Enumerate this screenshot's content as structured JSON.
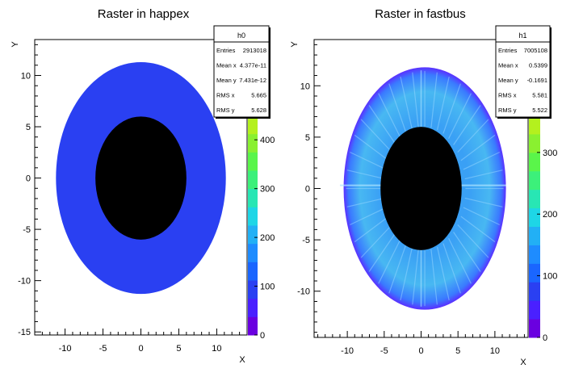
{
  "chart_data": [
    {
      "type": "heatmap",
      "title": "Raster in happex",
      "xlabel": "X",
      "ylabel": "Y",
      "xlim": [
        -14,
        14
      ],
      "ylim": [
        -15.3,
        13.5
      ],
      "x_ticks": [
        -10,
        -5,
        0,
        5,
        10
      ],
      "y_ticks": [
        -15,
        -10,
        -5,
        0,
        5,
        10
      ],
      "outer_ellipse": {
        "cx": 0,
        "cy": 0,
        "rx": 11.2,
        "ry": 11.3
      },
      "inner_ellipse": {
        "cx": 0,
        "cy": 0,
        "rx": 6.0,
        "ry": 6.0
      },
      "fill_color": "#2a40f2",
      "hole_color": "#000000",
      "colorbar": {
        "max": 450,
        "ticks": [
          0,
          100,
          200,
          300,
          400
        ],
        "tick_labels": [
          "0",
          "100",
          "200",
          "300",
          "400"
        ],
        "top_label": "0"
      },
      "stats": {
        "name": "h0",
        "rows": [
          {
            "label": "Entries",
            "value": "2913018"
          },
          {
            "label": "Mean x",
            "value": "4.377e-11"
          },
          {
            "label": "Mean y",
            "value": "7.431e-12"
          },
          {
            "label": "RMS x",
            "value": "5.665"
          },
          {
            "label": "RMS y",
            "value": "5.628"
          }
        ]
      }
    },
    {
      "type": "heatmap",
      "title": "Raster in fastbus",
      "xlabel": "X",
      "ylabel": "Y",
      "xlim": [
        -14.5,
        14.5
      ],
      "ylim": [
        -14.5,
        14.5
      ],
      "x_ticks": [
        -10,
        -5,
        0,
        5,
        10
      ],
      "y_ticks": [
        -10,
        -5,
        0,
        5,
        10
      ],
      "outer_ellipse": {
        "cx": 0.5,
        "cy": 0,
        "rx": 11,
        "ry": 11.8
      },
      "inner_ellipse": {
        "cx": 0,
        "cy": 0,
        "rx": 5.5,
        "ry": 6
      },
      "fill_color": "#4fb0f0",
      "hole_color": "#000000",
      "colorbar": {
        "max": 360,
        "ticks": [
          0,
          100,
          200,
          300
        ],
        "tick_labels": [
          "0",
          "100",
          "200",
          "300"
        ],
        "top_label": "0"
      },
      "stats": {
        "name": "h1",
        "rows": [
          {
            "label": "Entries",
            "value": "7005108"
          },
          {
            "label": "Mean x",
            "value": "0.5399"
          },
          {
            "label": "Mean y",
            "value": "-0.1691"
          },
          {
            "label": "RMS x",
            "value": "5.581"
          },
          {
            "label": "RMS y",
            "value": "5.522"
          }
        ]
      }
    }
  ],
  "palette": [
    "#6a00e0",
    "#4a20ff",
    "#2a40f2",
    "#1a66ff",
    "#1e8cff",
    "#22b0f5",
    "#1ed6e6",
    "#28e6b4",
    "#3cf07a",
    "#5af54a",
    "#8af030",
    "#b4f01e"
  ]
}
